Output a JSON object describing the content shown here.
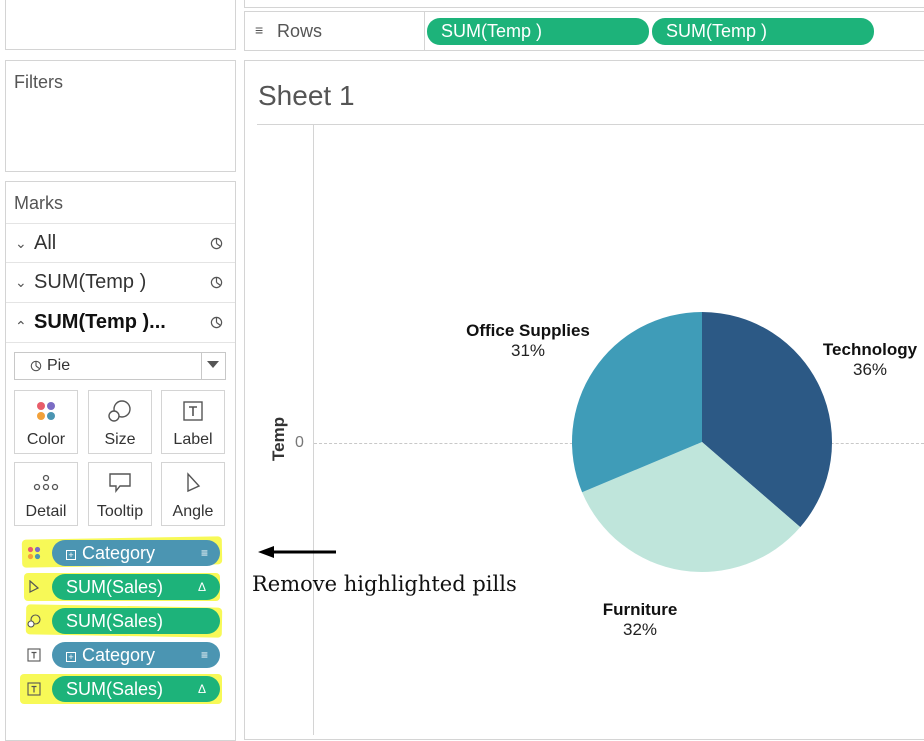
{
  "shelves": {
    "rows_label": "Rows",
    "rows_pills": [
      "SUM(Temp )",
      "SUM(Temp )"
    ]
  },
  "filters": {
    "title": "Filters"
  },
  "marks": {
    "title": "Marks",
    "cards": [
      {
        "label": "All",
        "chevron": "chevron-down"
      },
      {
        "label": "SUM(Temp )",
        "chevron": "chevron-down"
      },
      {
        "label": "SUM(Temp )...",
        "chevron": "chevron-up",
        "active": true
      }
    ],
    "mark_type": "Pie",
    "buttons": [
      "Color",
      "Size",
      "Label",
      "Detail",
      "Tooltip",
      "Angle"
    ],
    "pills": [
      {
        "type_icon": "color-icon",
        "text": "Category",
        "kind": "dimension",
        "highlighted": true
      },
      {
        "type_icon": "angle-icon",
        "text": "SUM(Sales)",
        "kind": "measure",
        "highlighted": true
      },
      {
        "type_icon": "size-icon",
        "text": "SUM(Sales)",
        "kind": "measure",
        "highlighted": true
      },
      {
        "type_icon": "label-icon",
        "text": "Category",
        "kind": "dimension",
        "highlighted": false
      },
      {
        "type_icon": "label-icon",
        "text": "SUM(Sales)",
        "kind": "measure",
        "highlighted": true
      }
    ]
  },
  "sheet": {
    "title": "Sheet 1",
    "axis_label": "Temp",
    "axis_tick": "0"
  },
  "annotation": {
    "text": "Remove highlighted pills"
  },
  "chart_data": {
    "type": "pie",
    "categories": [
      "Technology",
      "Furniture",
      "Office Supplies"
    ],
    "values": [
      36,
      32,
      31
    ],
    "labels": [
      "36%",
      "32%",
      "31%"
    ],
    "colors": [
      "#2c5985",
      "#bfe5db",
      "#3f9cb8"
    ]
  }
}
